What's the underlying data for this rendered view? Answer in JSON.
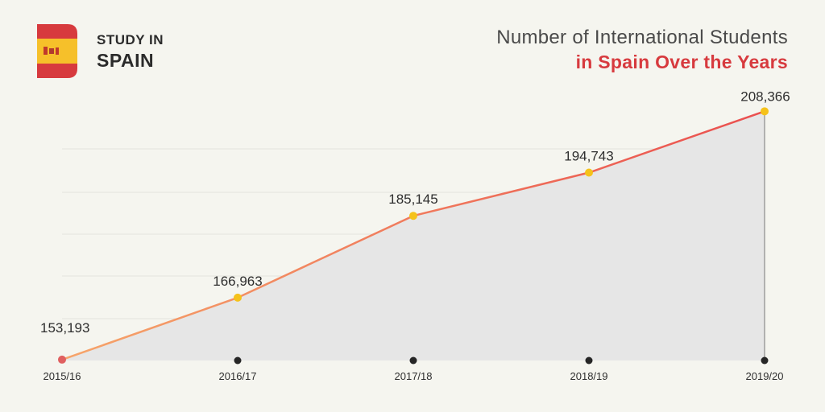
{
  "brand": {
    "line1": "STUDY IN",
    "line2": "SPAIN"
  },
  "colors": {
    "flag_red": "#d73a3e",
    "flag_yellow": "#f6c02a",
    "line_start": "#f6a56a",
    "line_end": "#ea4f4f",
    "marker": "#f5c21a",
    "first_marker": "#e06060",
    "area": "#e6e6e6"
  },
  "chart_data": {
    "type": "area",
    "title": "Number of International Students",
    "subtitle": "in Spain Over the Years",
    "categories": [
      "2015/16",
      "2016/17",
      "2017/18",
      "2018/19",
      "2019/20"
    ],
    "values": [
      153193,
      166963,
      185145,
      194743,
      208366
    ],
    "value_labels": [
      "153,193",
      "166,963",
      "185,145",
      "194,743",
      "208,366"
    ],
    "ylim": [
      153000,
      212000
    ],
    "grid": true,
    "xlabel": "",
    "ylabel": ""
  }
}
